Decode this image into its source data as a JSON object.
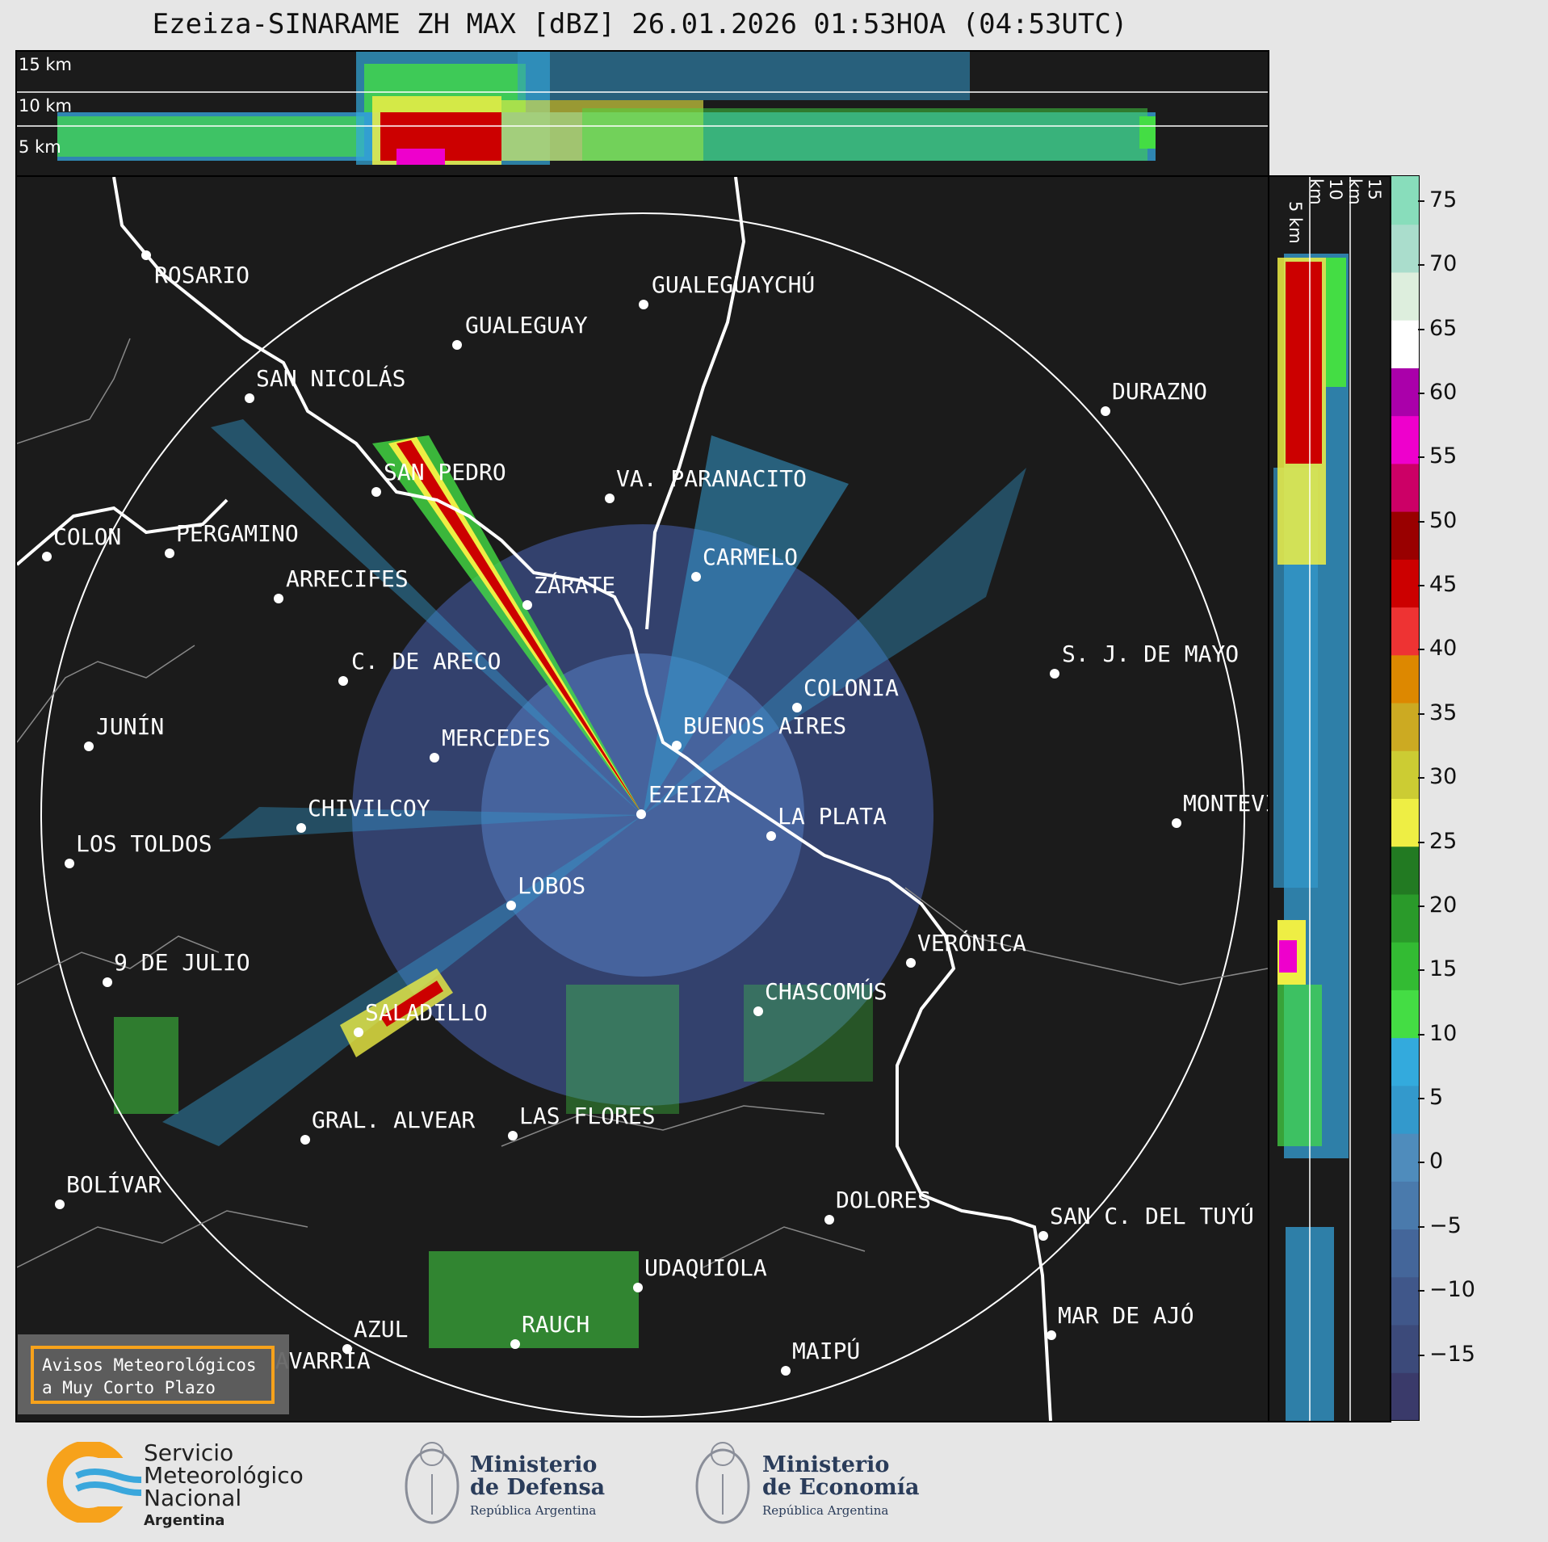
{
  "title": "Ezeiza-SINARAME ZH MAX [dBZ] 26.01.2026 01:53HOA (04:53UTC)",
  "top_panel": {
    "km_labels": [
      "15 km",
      "10 km",
      "5 km"
    ]
  },
  "side_panel": {
    "km_labels": [
      "5 km",
      "10 km",
      "15 km"
    ]
  },
  "colorbar": {
    "unit": "dBZ",
    "ticks": [
      "75",
      "70",
      "65",
      "60",
      "55",
      "50",
      "45",
      "40",
      "35",
      "30",
      "25",
      "20",
      "15",
      "10",
      "5",
      "0",
      "−5",
      "−10",
      "−15"
    ],
    "range": [
      -20,
      77
    ],
    "colors": [
      "#3a3a6a",
      "#3c4a7a",
      "#40578a",
      "#44669a",
      "#4a7aac",
      "#4f8cbc",
      "#3399cc",
      "#33aadd",
      "#44dd44",
      "#33bb33",
      "#2a9a2a",
      "#227a22",
      "#eeee44",
      "#cccc33",
      "#ccaa22",
      "#dd8800",
      "#ee3333",
      "#cc0000",
      "#990000",
      "#cc0066",
      "#ee00cc",
      "#aa00aa",
      "#ffffff",
      "#ddeedd",
      "#aaddcc",
      "#88ddbb"
    ]
  },
  "cities": [
    {
      "name": "ROSARIO"
    },
    {
      "name": "GUALEGUAYCHÚ"
    },
    {
      "name": "GUALEGUAY"
    },
    {
      "name": "SAN NICOLÁS"
    },
    {
      "name": "DURAZNO"
    },
    {
      "name": "SAN PEDRO"
    },
    {
      "name": "VA. PARANACITO"
    },
    {
      "name": "COLON"
    },
    {
      "name": "PERGAMINO"
    },
    {
      "name": "CARMELO"
    },
    {
      "name": "ARRECIFES"
    },
    {
      "name": "ZÁRATE"
    },
    {
      "name": "S. J. DE MAYO"
    },
    {
      "name": "C. DE ARECO"
    },
    {
      "name": "COLONIA"
    },
    {
      "name": "JUNÍN"
    },
    {
      "name": "BUENOS AIRES"
    },
    {
      "name": "MERCEDES"
    },
    {
      "name": "MONTEVIDEO"
    },
    {
      "name": "EZEIZA"
    },
    {
      "name": "CHIVILCOY"
    },
    {
      "name": "LA PLATA"
    },
    {
      "name": "LOS TOLDOS"
    },
    {
      "name": "LOBOS"
    },
    {
      "name": "VERÓNICA"
    },
    {
      "name": "9 DE JULIO"
    },
    {
      "name": "CHASCOMÚS"
    },
    {
      "name": "SALADILLO"
    },
    {
      "name": "GRAL. ALVEAR"
    },
    {
      "name": "LAS FLORES"
    },
    {
      "name": "BOLÍVAR"
    },
    {
      "name": "DOLORES"
    },
    {
      "name": "SAN C. DEL TUYÚ"
    },
    {
      "name": "UDAQUIOLA"
    },
    {
      "name": "MAR DE AJÓ"
    },
    {
      "name": "RAUCH"
    },
    {
      "name": "AZUL"
    },
    {
      "name": "OLAVARRÍA"
    },
    {
      "name": "MAIPÚ"
    }
  ],
  "warning_box": {
    "line1": "Avisos Meteorológicos",
    "line2": "a Muy Corto Plazo"
  },
  "logos": {
    "smn": {
      "line1": "Servicio",
      "line2": "Meteorológico",
      "line3": "Nacional",
      "line4": "Argentina"
    },
    "defensa": {
      "line1": "Ministerio",
      "line2": "de Defensa",
      "line3": "República Argentina"
    },
    "economia": {
      "line1": "Ministerio",
      "line2": "de Economía",
      "line3": "República Argentina"
    }
  }
}
